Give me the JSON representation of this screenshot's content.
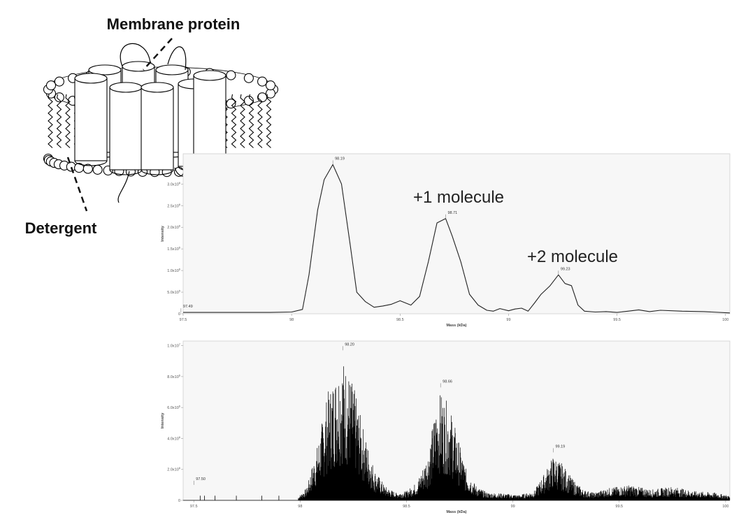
{
  "schematic": {
    "protein_label": "Membrane protein",
    "detergent_label": "Detergent",
    "icon": "micelle-cylinders-icon"
  },
  "annotations": {
    "plus1": "+1 molecule",
    "plus2": "+2 molecule"
  },
  "chart_data": [
    {
      "type": "line",
      "name": "deconvoluted",
      "xlabel": "Mass (kDa)",
      "ylabel": "Intensity",
      "xlim": [
        97.5,
        100.02
      ],
      "ylim": [
        0,
        3700000.0
      ],
      "xticks": [
        {
          "v": 97.5,
          "t": "97.5"
        },
        {
          "v": 98.0,
          "t": "98"
        },
        {
          "v": 98.5,
          "t": "98.5"
        },
        {
          "v": 99.0,
          "t": "99"
        },
        {
          "v": 99.5,
          "t": "99.5"
        },
        {
          "v": 100.0,
          "t": "100"
        }
      ],
      "yticks": [
        {
          "v": 0,
          "t": "0"
        },
        {
          "v": 500000,
          "t": "5.0x10^5"
        },
        {
          "v": 1000000,
          "t": "1.0x10^6"
        },
        {
          "v": 1500000,
          "t": "1.5x10^6"
        },
        {
          "v": 2000000,
          "t": "2.0x10^6"
        },
        {
          "v": 2500000,
          "t": "2.5x10^6"
        },
        {
          "v": 3000000,
          "t": "3.0x10^6"
        }
      ],
      "peaks": [
        {
          "mass": 97.49,
          "intensity": 30000,
          "label": "97.49"
        },
        {
          "mass": 98.19,
          "intensity": 3450000,
          "label": "98.19"
        },
        {
          "mass": 98.71,
          "intensity": 2200000,
          "label": "98.71"
        },
        {
          "mass": 99.23,
          "intensity": 900000,
          "label": "99.23"
        }
      ],
      "x": [
        97.5,
        97.9,
        98.0,
        98.05,
        98.08,
        98.12,
        98.15,
        98.19,
        98.23,
        98.27,
        98.3,
        98.34,
        98.38,
        98.42,
        98.46,
        98.5,
        98.55,
        98.59,
        98.63,
        98.67,
        98.71,
        98.74,
        98.78,
        98.82,
        98.86,
        98.9,
        98.93,
        98.96,
        99.0,
        99.03,
        99.06,
        99.09,
        99.12,
        99.15,
        99.19,
        99.23,
        99.26,
        99.29,
        99.32,
        99.35,
        99.4,
        99.45,
        99.5,
        99.55,
        99.6,
        99.65,
        99.7,
        99.8,
        99.9,
        100.02
      ],
      "y": [
        30000,
        30000,
        40000,
        100000,
        900000,
        2400000,
        3100000,
        3450000,
        3000000,
        1600000,
        500000,
        280000,
        150000,
        180000,
        220000,
        300000,
        200000,
        400000,
        1200000,
        2100000,
        2200000,
        1800000,
        1200000,
        450000,
        200000,
        80000,
        60000,
        120000,
        70000,
        110000,
        130000,
        60000,
        250000,
        450000,
        640000,
        900000,
        700000,
        650000,
        200000,
        60000,
        40000,
        50000,
        30000,
        60000,
        90000,
        50000,
        80000,
        60000,
        50000,
        20000
      ]
    },
    {
      "type": "line",
      "name": "raw",
      "xlabel": "Mass (kDa)",
      "ylabel": "Intensity",
      "xlim": [
        97.45,
        100.02
      ],
      "ylim": [
        0,
        10300000.0
      ],
      "xticks": [
        {
          "v": 97.5,
          "t": "97.5"
        },
        {
          "v": 98.0,
          "t": "98"
        },
        {
          "v": 98.5,
          "t": "98.5"
        },
        {
          "v": 99.0,
          "t": "99"
        },
        {
          "v": 99.5,
          "t": "99.5"
        },
        {
          "v": 100.0,
          "t": "100"
        }
      ],
      "yticks": [
        {
          "v": 0,
          "t": "0"
        },
        {
          "v": 2000000,
          "t": "2.0x10^6"
        },
        {
          "v": 4000000,
          "t": "4.0x10^6"
        },
        {
          "v": 6000000,
          "t": "6.0x10^6"
        },
        {
          "v": 8000000,
          "t": "8.0x10^6"
        },
        {
          "v": 10000000,
          "t": "1.0x10^7"
        }
      ],
      "peaks": [
        {
          "mass": 97.5,
          "intensity": 1000000,
          "label": "97.50"
        },
        {
          "mass": 98.2,
          "intensity": 9700000,
          "label": "98.20"
        },
        {
          "mass": 98.66,
          "intensity": 7300000,
          "label": "98.66"
        },
        {
          "mass": 99.19,
          "intensity": 3100000,
          "label": "99.19"
        }
      ],
      "envelope": {
        "x": [
          97.99,
          98.03,
          98.08,
          98.13,
          98.18,
          98.2,
          98.25,
          98.3,
          98.35,
          98.4,
          98.45,
          98.5,
          98.55,
          98.6,
          98.64,
          98.66,
          98.7,
          98.74,
          98.78,
          98.83,
          98.88,
          98.95,
          99.03,
          99.1,
          99.15,
          99.19,
          99.23,
          99.28,
          99.33,
          99.38,
          99.45,
          99.55,
          99.65,
          99.75,
          99.85,
          99.95,
          100.02
        ],
        "y": [
          200000,
          800000,
          3500000,
          7000000,
          8700000,
          9300000,
          7500000,
          4500000,
          2000000,
          900000,
          500000,
          600000,
          1200000,
          3000000,
          6200000,
          7000000,
          6200000,
          4200000,
          2000000,
          900000,
          500000,
          450000,
          350000,
          600000,
          1800000,
          2900000,
          2400000,
          1400000,
          700000,
          500000,
          800000,
          1000000,
          700000,
          900000,
          600000,
          500000,
          300000
        ]
      }
    }
  ]
}
